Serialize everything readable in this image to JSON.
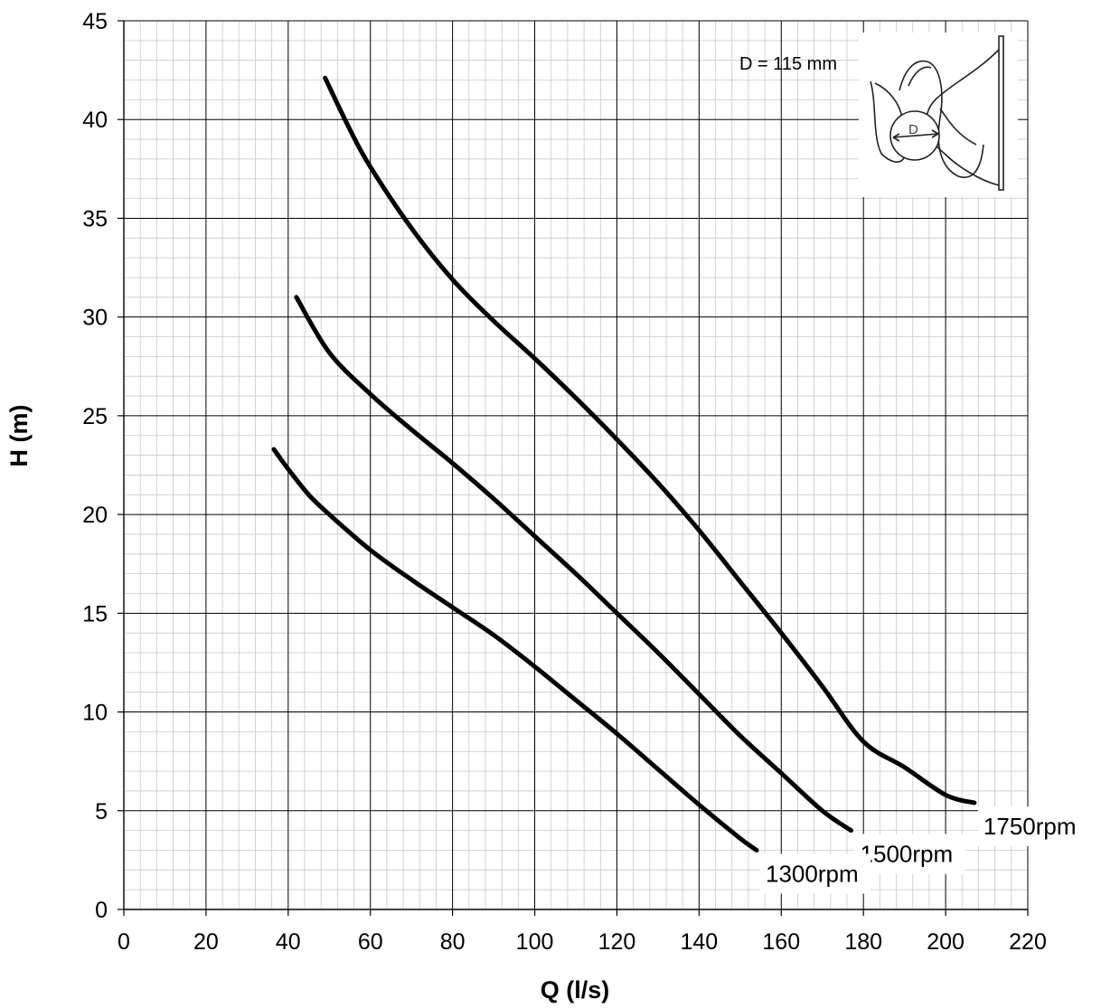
{
  "chart_data": {
    "type": "line",
    "xlabel": "Q (l/s)",
    "ylabel": "H (m)",
    "xlim": [
      0,
      220
    ],
    "ylim": [
      0,
      45
    ],
    "x_ticks": [
      "0",
      "20",
      "40",
      "60",
      "80",
      "100",
      "120",
      "140",
      "160",
      "180",
      "200",
      "220"
    ],
    "y_ticks": [
      "0",
      "5",
      "10",
      "15",
      "20",
      "25",
      "30",
      "35",
      "40",
      "45"
    ],
    "grid": true,
    "minor_grid": true,
    "inset_label": "D = 115 mm",
    "inset_symbol": "D",
    "series": [
      {
        "name": "1750rpm",
        "points": [
          [
            49,
            42.1
          ],
          [
            55,
            39.5
          ],
          [
            60,
            37.6
          ],
          [
            70,
            34.5
          ],
          [
            80,
            31.9
          ],
          [
            90,
            29.8
          ],
          [
            100,
            27.9
          ],
          [
            110,
            25.9
          ],
          [
            120,
            23.8
          ],
          [
            130,
            21.6
          ],
          [
            140,
            19.2
          ],
          [
            150,
            16.6
          ],
          [
            160,
            14.0
          ],
          [
            170,
            11.3
          ],
          [
            180,
            8.5
          ],
          [
            190,
            7.2
          ],
          [
            200,
            5.8
          ],
          [
            207,
            5.4
          ]
        ]
      },
      {
        "name": "1500rpm",
        "points": [
          [
            42,
            31.0
          ],
          [
            50,
            28.2
          ],
          [
            60,
            26.1
          ],
          [
            70,
            24.3
          ],
          [
            80,
            22.6
          ],
          [
            90,
            20.8
          ],
          [
            100,
            18.9
          ],
          [
            110,
            17.0
          ],
          [
            120,
            15.0
          ],
          [
            130,
            13.0
          ],
          [
            140,
            10.9
          ],
          [
            150,
            8.8
          ],
          [
            160,
            6.9
          ],
          [
            170,
            5.0
          ],
          [
            177,
            4.0
          ]
        ]
      },
      {
        "name": "1300rpm",
        "points": [
          [
            36.5,
            23.3
          ],
          [
            40,
            22.3
          ],
          [
            45,
            21.0
          ],
          [
            50,
            20.0
          ],
          [
            60,
            18.2
          ],
          [
            70,
            16.7
          ],
          [
            80,
            15.3
          ],
          [
            90,
            13.9
          ],
          [
            100,
            12.3
          ],
          [
            110,
            10.6
          ],
          [
            120,
            8.9
          ],
          [
            130,
            7.1
          ],
          [
            140,
            5.3
          ],
          [
            150,
            3.6
          ],
          [
            154,
            3.0
          ]
        ]
      }
    ]
  }
}
